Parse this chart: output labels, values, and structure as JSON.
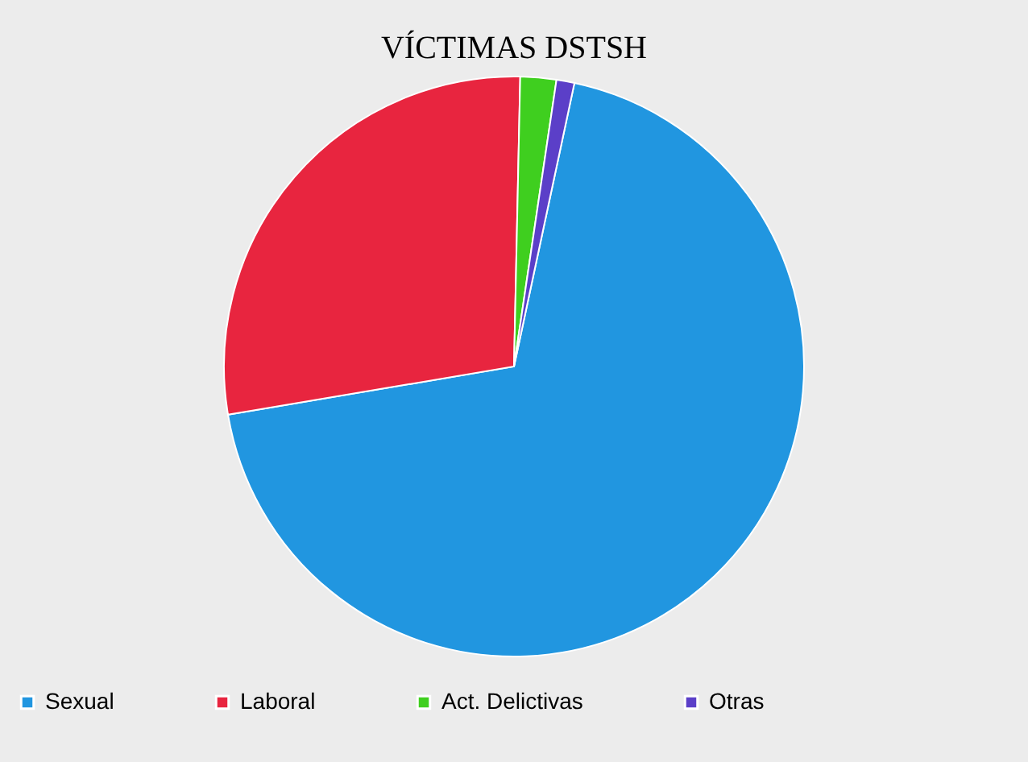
{
  "chart_data": {
    "type": "pie",
    "title": "VÍCTIMAS DSTSH",
    "categories": [
      "Sexual",
      "Laboral",
      "Act. Delictivas",
      "Otras"
    ],
    "values": [
      69,
      28,
      2,
      1
    ],
    "colors": [
      "#2196e0",
      "#e8253f",
      "#3fcf1f",
      "#5b3fc8"
    ],
    "legend": "bottom"
  }
}
